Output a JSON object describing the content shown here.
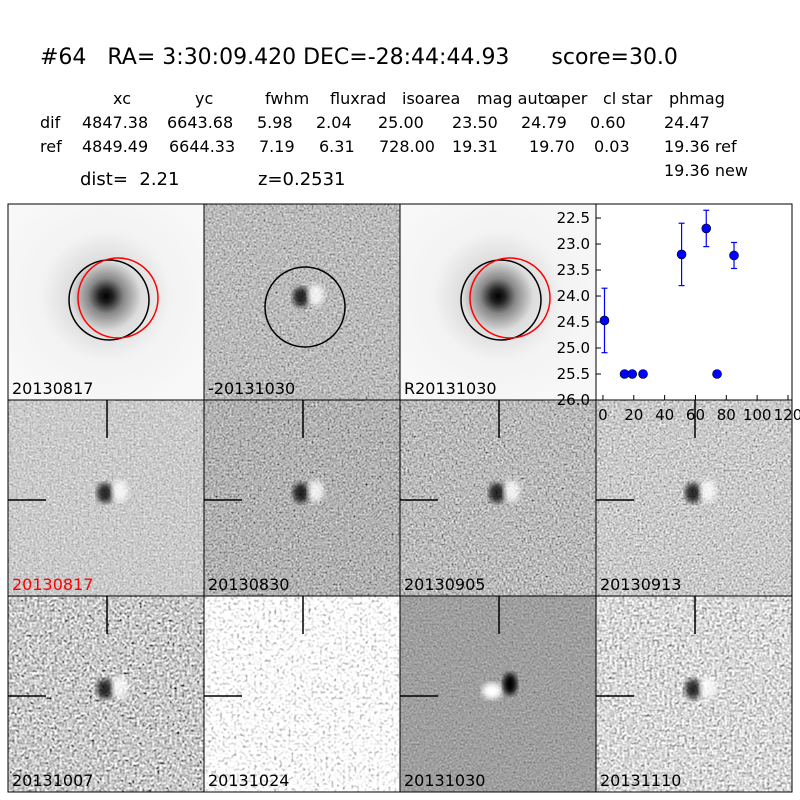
{
  "header": {
    "title": "#64   RA= 3:30:09.420 DEC=-28:44:44.93      score=30.0"
  },
  "table": {
    "columns": [
      "xc",
      "yc",
      "fwhm",
      "fluxrad",
      "isoarea",
      "mag auto",
      "aper",
      "cl star",
      "phmag"
    ],
    "rows": [
      [
        "dif",
        "4847.38",
        "6643.68",
        "5.98",
        "2.04",
        "25.00",
        "23.50",
        "24.79",
        "0.60",
        "24.47"
      ],
      [
        "ref",
        "4849.49",
        "6644.33",
        "7.19",
        "6.31",
        "728.00",
        "19.31",
        "19.70",
        "0.03",
        "19.36 ref"
      ]
    ],
    "extra": "19.36 new",
    "dist": "dist=  2.21",
    "z": "z=0.2531"
  },
  "panels": [
    {
      "label": "20130817"
    },
    {
      "label": "-20131030"
    },
    {
      "label": "R20131030"
    },
    {
      "label": "20130817"
    },
    {
      "label": "20130830"
    },
    {
      "label": "20130905"
    },
    {
      "label": "20130913"
    },
    {
      "label": "20131007"
    },
    {
      "label": "20131024"
    },
    {
      "label": "20131030"
    },
    {
      "label": "20131110"
    }
  ],
  "chart_data": {
    "type": "scatter",
    "color": "#0000ff",
    "x": [
      1,
      14,
      19,
      26,
      51,
      67,
      74,
      85
    ],
    "values": [
      24.47,
      25.5,
      25.5,
      25.5,
      23.2,
      22.7,
      25.5,
      23.22
    ],
    "errors": [
      0.62,
      null,
      null,
      null,
      0.6,
      0.35,
      null,
      0.25
    ],
    "xlim": [
      -4.5,
      122.6
    ],
    "ylim": [
      26.0,
      22.23
    ],
    "xticks": [
      0,
      20,
      40,
      60,
      80,
      100,
      120
    ],
    "yticks": [
      22.5,
      {
        "value": 23,
        "label": "23.0"
      },
      23.5,
      {
        "value": 24,
        "label": "24.0"
      },
      24.5,
      {
        "value": 25,
        "label": "25.0"
      },
      25.5,
      {
        "value": 26,
        "label": "26.0"
      }
    ]
  }
}
